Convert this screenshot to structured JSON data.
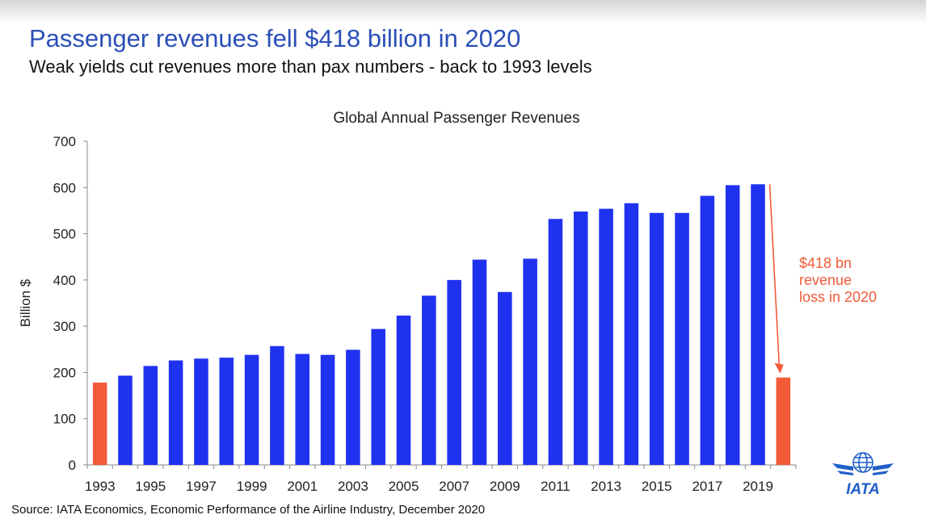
{
  "header": {
    "title": "Passenger revenues fell $418 billion in 2020",
    "subtitle": "Weak yields cut revenues more than pax numbers - back to 1993 levels"
  },
  "footer": {
    "source": "Source: IATA Economics, Economic Performance of the Airline Industry, December 2020"
  },
  "logo": {
    "text": "IATA",
    "icon": "iata-globe-wings-logo"
  },
  "colors": {
    "bar": "#1f32f0",
    "highlight": "#f25a38",
    "title": "#2a4fb7"
  },
  "chart_data": {
    "type": "bar",
    "title": "Global Annual Passenger Revenues",
    "ylabel": "Billion $",
    "xlabel": "",
    "ylim": [
      0,
      700
    ],
    "yticks": [
      0,
      100,
      200,
      300,
      400,
      500,
      600,
      700
    ],
    "categories": [
      "1993",
      "1994",
      "1995",
      "1996",
      "1997",
      "1998",
      "1999",
      "2000",
      "2001",
      "2002",
      "2003",
      "2004",
      "2005",
      "2006",
      "2007",
      "2008",
      "2009",
      "2010",
      "2011",
      "2012",
      "2013",
      "2014",
      "2015",
      "2016",
      "2017",
      "2018",
      "2019",
      "2020"
    ],
    "xtick_labels": [
      "1993",
      "1995",
      "1997",
      "1999",
      "2001",
      "2003",
      "2005",
      "2007",
      "2009",
      "2011",
      "2013",
      "2015",
      "2017",
      "2019"
    ],
    "values": [
      178,
      193,
      214,
      226,
      230,
      232,
      238,
      257,
      240,
      238,
      249,
      294,
      323,
      366,
      400,
      444,
      374,
      446,
      532,
      548,
      554,
      566,
      545,
      545,
      582,
      605,
      607,
      189
    ],
    "highlighted": [
      "1993",
      "2020"
    ],
    "annotation": {
      "lines": [
        "$418 bn",
        "revenue",
        "loss in 2020"
      ],
      "arrow_from_value": 607,
      "arrow_to_value": 189
    },
    "grid": false,
    "legend": "none"
  }
}
